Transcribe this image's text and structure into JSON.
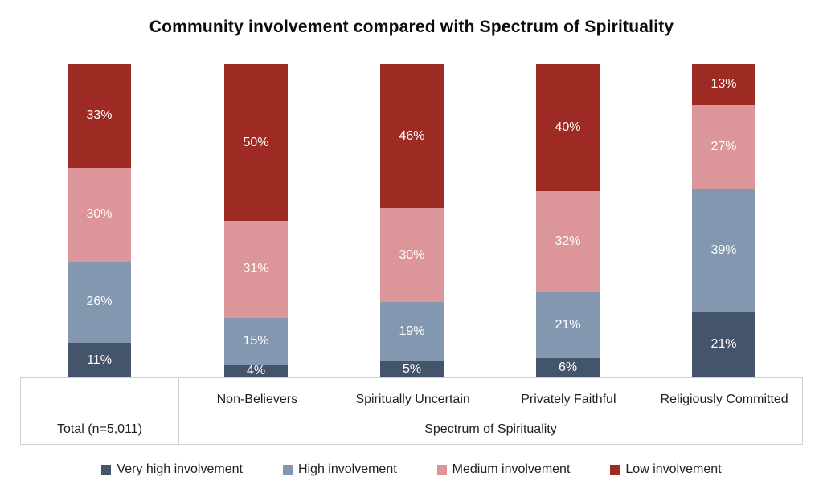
{
  "chart_data": {
    "type": "bar",
    "subtype": "stacked-percentage",
    "title": "Community involvement compared with Spectrum of Spirituality",
    "categories": [
      "Total (n=5,011)",
      "Non-Believers",
      "Spiritually Uncertain",
      "Privately Faithful",
      "Religiously Committed"
    ],
    "group_label": "Spectrum of Spirituality",
    "grouped_categories": [
      "Non-Believers",
      "Spiritually Uncertain",
      "Privately Faithful",
      "Religiously Committed"
    ],
    "series": [
      {
        "name": "Very high involvement",
        "color": "#44546A",
        "values": [
          11,
          4,
          5,
          6,
          21
        ]
      },
      {
        "name": "High involvement",
        "color": "#8497B0",
        "values": [
          26,
          15,
          19,
          21,
          39
        ]
      },
      {
        "name": "Medium involvement",
        "color": "#DC9598",
        "values": [
          30,
          31,
          30,
          32,
          27
        ]
      },
      {
        "name": "Low involvement",
        "color": "#9E2B23",
        "values": [
          33,
          50,
          46,
          40,
          13
        ]
      }
    ],
    "value_suffix": "%",
    "ylim": [
      0,
      100
    ],
    "grid": false,
    "legend_position": "bottom",
    "data_label_color": "#FFFFFF"
  }
}
